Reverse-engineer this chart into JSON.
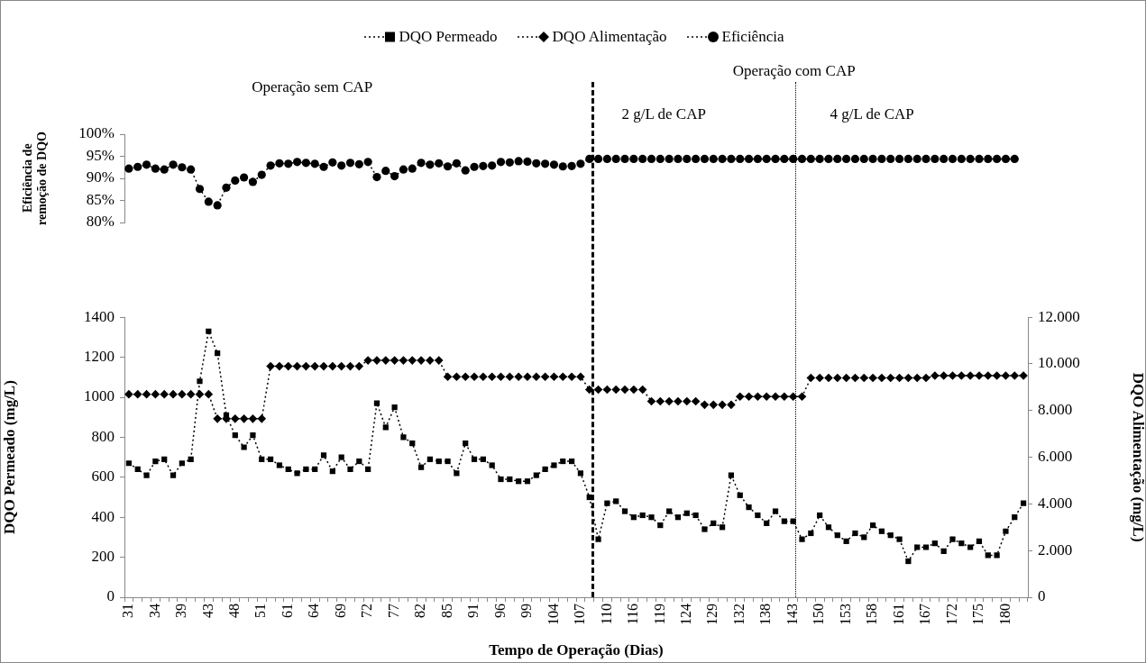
{
  "chart_data": [
    {
      "type": "line",
      "ylabel": "Eficiência de remoção de DQO",
      "legend": "top",
      "line_style": "dotted",
      "tick_labels": "y",
      "annotations": [
        "Operação sem CAP",
        "Operação com CAP",
        "2 g/L de CAP",
        "4 g/L de CAP"
      ],
      "categories": [
        "31",
        null,
        null,
        "34",
        null,
        null,
        "39",
        null,
        null,
        "43",
        null,
        null,
        "48",
        null,
        null,
        "51",
        null,
        null,
        "61",
        null,
        null,
        "64",
        null,
        null,
        "69",
        null,
        null,
        "72",
        null,
        null,
        "77",
        null,
        null,
        "82",
        null,
        null,
        "85",
        null,
        null,
        "91",
        null,
        null,
        "96",
        null,
        null,
        "99",
        null,
        null,
        "104",
        null,
        null,
        "107",
        null,
        null,
        "110",
        null,
        null,
        "116",
        null,
        null,
        "119",
        null,
        null,
        "124",
        null,
        null,
        "129",
        null,
        null,
        "132",
        null,
        null,
        "138",
        null,
        null,
        "143",
        null,
        null,
        "150",
        null,
        null,
        "153",
        null,
        null,
        "158",
        null,
        null,
        "161",
        null,
        null,
        "167",
        null,
        null,
        "172",
        null,
        null,
        "175",
        null,
        null,
        "180",
        null,
        null
      ],
      "ylim": [
        80,
        100
      ],
      "yticks": [
        {
          "value": 80,
          "label": "80%"
        },
        {
          "value": 85,
          "label": "85%"
        },
        {
          "value": 90,
          "label": "90%"
        },
        {
          "value": 95,
          "label": "95%"
        },
        {
          "value": 100,
          "label": "100%"
        }
      ],
      "series": [
        {
          "name": "Eficiência",
          "color": "#000000",
          "marker": "circle",
          "values": [
            92.2,
            92.6,
            93.1,
            92.2,
            92.0,
            93.1,
            92.5,
            92.0,
            87.6,
            84.7,
            83.9,
            87.9,
            89.5,
            90.2,
            89.2,
            90.8,
            92.9,
            93.4,
            93.3,
            93.7,
            93.5,
            93.3,
            92.6,
            93.6,
            92.9,
            93.5,
            93.2,
            93.7,
            90.3,
            91.7,
            90.5,
            92.0,
            92.2,
            93.5,
            93.1,
            93.4,
            92.7,
            93.4,
            91.8,
            92.6,
            92.8,
            92.9,
            93.7,
            93.6,
            93.9,
            93.8,
            93.4,
            93.3,
            93.1,
            92.7,
            92.8,
            93.3,
            94.4,
            94.4,
            94.4,
            94.4,
            94.4,
            94.4,
            94.4,
            94.4,
            94.4,
            94.4,
            94.4,
            94.4,
            94.4,
            94.4,
            94.4,
            94.4,
            94.4,
            94.4,
            94.4,
            94.4,
            94.4,
            94.4,
            94.4,
            94.4,
            94.4,
            94.4,
            94.4,
            94.4,
            94.4,
            94.4,
            94.4,
            94.4,
            94.4,
            94.4,
            94.4,
            94.4,
            94.4,
            94.4,
            94.4,
            94.4,
            94.4,
            94.4,
            94.4,
            94.4,
            94.4,
            94.4,
            94.4,
            94.4,
            94.4,
            null
          ]
        }
      ]
    },
    {
      "type": "line",
      "xlabel": "Tempo de Operação (Dias)",
      "ylabel": "DQO Permeado (mg/L)",
      "y2label": "DQO Alimentação (mg/L)",
      "legend": "top",
      "line_style": "dotted",
      "categories": [
        "31",
        null,
        null,
        "34",
        null,
        null,
        "39",
        null,
        null,
        "43",
        null,
        null,
        "48",
        null,
        null,
        "51",
        null,
        null,
        "61",
        null,
        null,
        "64",
        null,
        null,
        "69",
        null,
        null,
        "72",
        null,
        null,
        "77",
        null,
        null,
        "82",
        null,
        null,
        "85",
        null,
        null,
        "91",
        null,
        null,
        "96",
        null,
        null,
        "99",
        null,
        null,
        "104",
        null,
        null,
        "107",
        null,
        null,
        "110",
        null,
        null,
        "116",
        null,
        null,
        "119",
        null,
        null,
        "124",
        null,
        null,
        "129",
        null,
        null,
        "132",
        null,
        null,
        "138",
        null,
        null,
        "143",
        null,
        null,
        "150",
        null,
        null,
        "153",
        null,
        null,
        "158",
        null,
        null,
        "161",
        null,
        null,
        "167",
        null,
        null,
        "172",
        null,
        null,
        "175",
        null,
        null,
        "180",
        null,
        null
      ],
      "ylim": [
        0,
        1400
      ],
      "yticks": [
        0,
        200,
        400,
        600,
        800,
        1000,
        1200,
        1400
      ],
      "y2lim": [
        0,
        12000
      ],
      "y2ticks": [
        0,
        {
          "value": 2000,
          "label": "2.000"
        },
        {
          "value": 4000,
          "label": "4.000"
        },
        {
          "value": 6000,
          "label": "6.000"
        },
        {
          "value": 8000,
          "label": "8.000"
        },
        {
          "value": 10000,
          "label": "10.000"
        },
        {
          "value": 12000,
          "label": "12.000"
        }
      ],
      "series": [
        {
          "name": "DQO Permeado",
          "color": "#000000",
          "marker": "square",
          "values": [
            670,
            640,
            610,
            680,
            690,
            610,
            670,
            690,
            1080,
            1330,
            1220,
            910,
            810,
            750,
            810,
            690,
            690,
            660,
            640,
            620,
            640,
            640,
            710,
            630,
            700,
            640,
            680,
            640,
            970,
            850,
            950,
            800,
            770,
            650,
            690,
            680,
            680,
            620,
            770,
            690,
            690,
            660,
            590,
            590,
            580,
            580,
            610,
            640,
            660,
            680,
            680,
            620,
            500,
            290,
            470,
            480,
            430,
            400,
            410,
            400,
            360,
            430,
            400,
            420,
            410,
            340,
            370,
            350,
            610,
            510,
            450,
            410,
            370,
            430,
            380,
            380,
            290,
            320,
            410,
            350,
            310,
            280,
            320,
            300,
            360,
            330,
            310,
            290,
            180,
            250,
            250,
            270,
            230,
            290,
            270,
            250,
            280,
            210,
            210,
            330,
            400,
            470
          ]
        },
        {
          "name": "DQO Alimentação",
          "color": "#000000",
          "marker": "diamond",
          "axis": "y2",
          "values": [
            8700,
            8700,
            8700,
            8700,
            8700,
            8700,
            8700,
            8700,
            8700,
            8700,
            7650,
            7650,
            7650,
            7650,
            7650,
            7650,
            9900,
            9900,
            9900,
            9900,
            9900,
            9900,
            9900,
            9900,
            9900,
            9900,
            9900,
            10150,
            10150,
            10150,
            10150,
            10150,
            10150,
            10150,
            10150,
            10150,
            9450,
            9450,
            9450,
            9450,
            9450,
            9450,
            9450,
            9450,
            9450,
            9450,
            9450,
            9450,
            9450,
            9450,
            9450,
            9450,
            8900,
            8900,
            8900,
            8900,
            8900,
            8900,
            8900,
            8400,
            8400,
            8400,
            8400,
            8400,
            8400,
            8250,
            8250,
            8250,
            8250,
            8600,
            8600,
            8600,
            8600,
            8600,
            8600,
            8600,
            8600,
            9400,
            9400,
            9400,
            9400,
            9400,
            9400,
            9400,
            9400,
            9400,
            9400,
            9400,
            9400,
            9400,
            9400,
            9500,
            9500,
            9500,
            9500,
            9500,
            9500,
            9500,
            9500,
            9500,
            9500,
            9500
          ]
        }
      ]
    }
  ]
}
